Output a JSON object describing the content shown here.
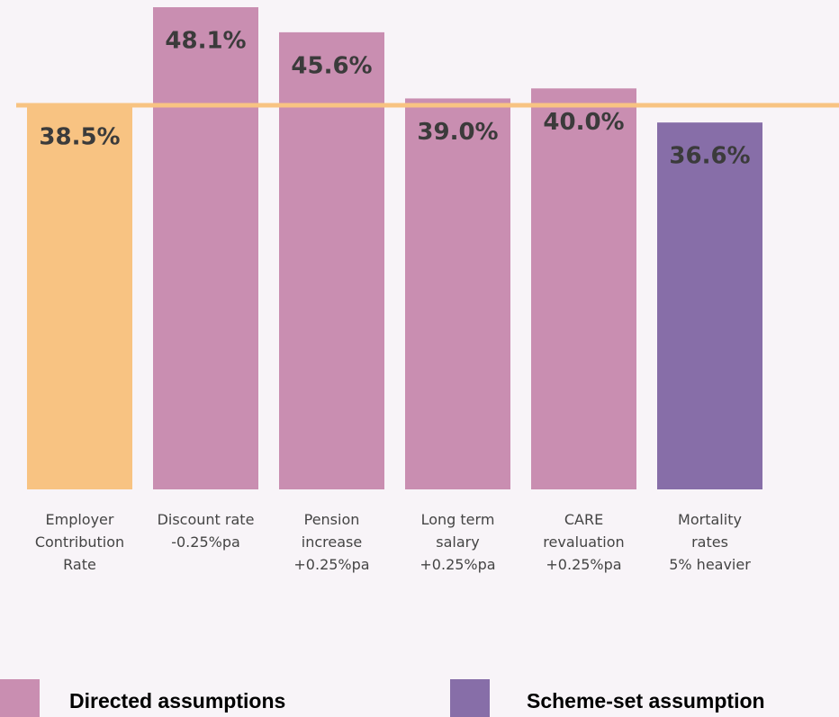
{
  "chart_data": {
    "type": "bar",
    "categories": [
      "Employer\nContribution\nRate",
      "Discount rate\n-0.25%pa",
      "Pension\nincrease\n+0.25%pa",
      "Long term\nsalary\n+0.25%pa",
      "CARE\nrevaluation\n+0.25%pa",
      "Mortality\nrates\n5% heavier"
    ],
    "values": [
      38.5,
      48.1,
      45.6,
      39.0,
      40.0,
      36.6
    ],
    "value_labels": [
      "38.5%",
      "48.1%",
      "45.6%",
      "39.0%",
      "40.0%",
      "36.6%"
    ],
    "colors": [
      "#f8c382",
      "#c98eb1",
      "#c98eb1",
      "#c98eb1",
      "#c98eb1",
      "#876ea8"
    ],
    "reference_line_color": "#f8c382",
    "legend": [
      {
        "name": "Directed assumptions",
        "color": "#c98eb1"
      },
      {
        "name": "Scheme-set assumption",
        "color": "#876ea8"
      }
    ]
  }
}
